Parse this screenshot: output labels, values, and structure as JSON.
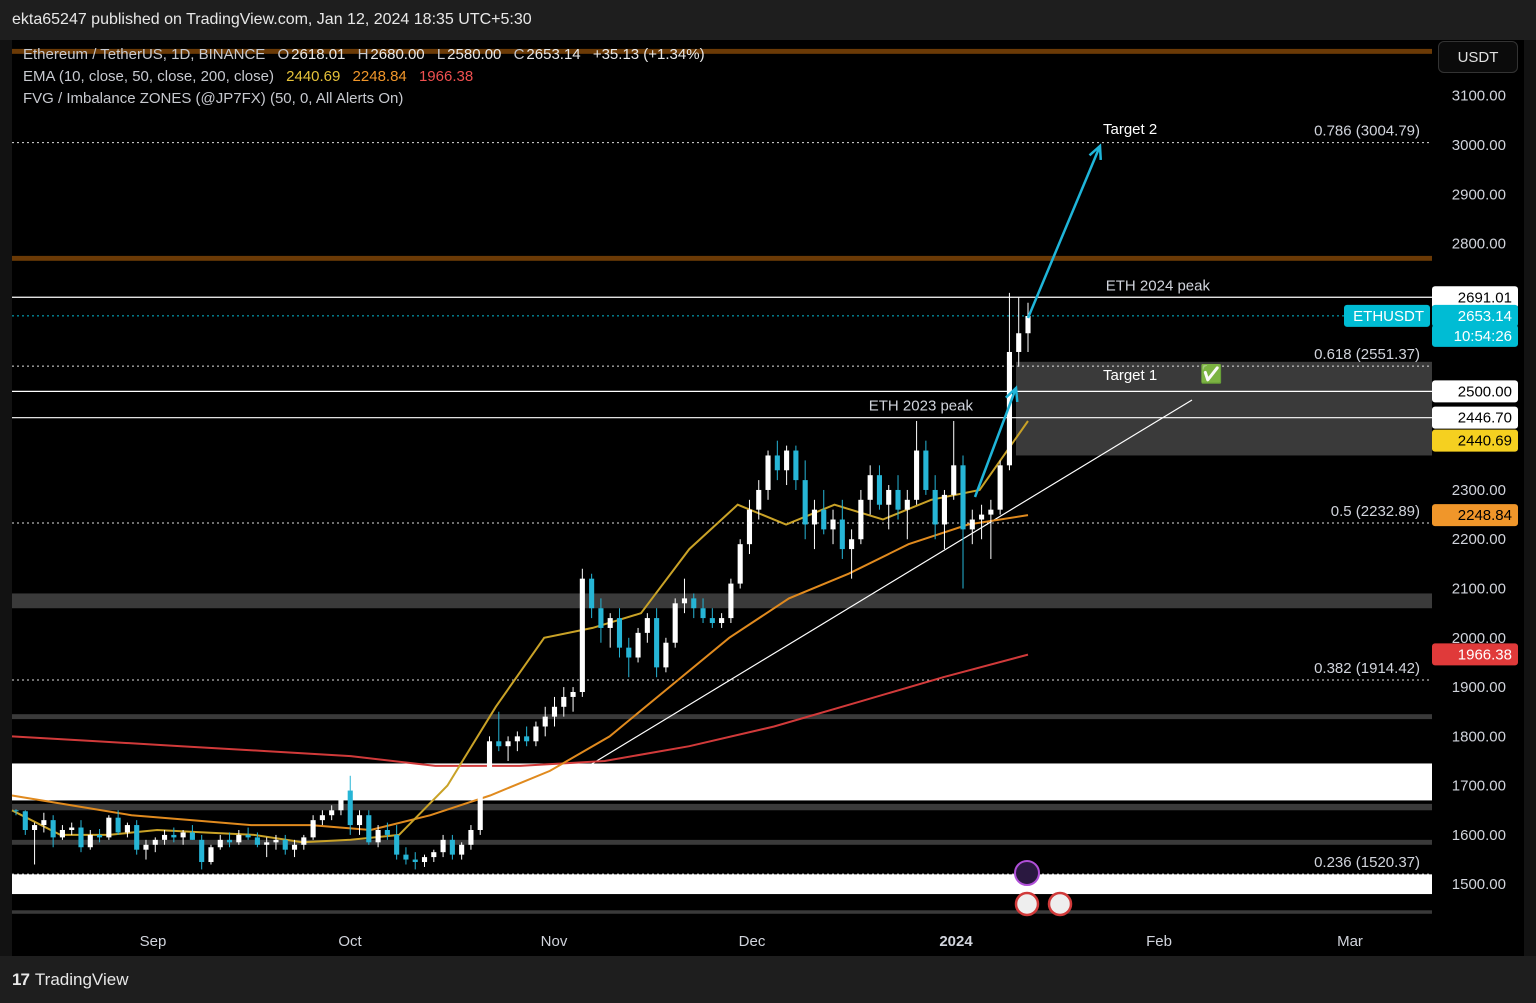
{
  "header": {
    "published_by": "ekta65247 published on TradingView.com, Jan 12, 2024 18:35 UTC+5:30"
  },
  "legend": {
    "symbol": "Ethereum / TetherUS, 1D, BINANCE",
    "o_label": "O",
    "o": "2618.01",
    "h_label": "H",
    "h": "2680.00",
    "l_label": "L",
    "l": "2580.00",
    "c_label": "C",
    "c": "2653.14",
    "change": "+35.13 (+1.34%)",
    "ema_label": "EMA (10, close, 50, close, 200, close)",
    "ema10": "2440.69",
    "ema50": "2248.84",
    "ema200": "1966.38",
    "fvg_label": "FVG / Imbalance ZONES (@JP7FX) (50, 0, All Alerts On)"
  },
  "currency_button": "USDT",
  "colors": {
    "up": "#ffffff",
    "down": "#26b5d6",
    "ema10": "#c9a227",
    "ema50": "#e08a1e",
    "ema200": "#d13a3a",
    "arrow": "#1fb5d9",
    "hband": "#6b3a06",
    "current": "#00bcd4"
  },
  "chart_data": {
    "type": "candlestick",
    "title": "Ethereum / TetherUS, 1D, BINANCE",
    "ylim": [
      1440,
      3180
    ],
    "y_ticks": [
      "3100.00",
      "3000.00",
      "2900.00",
      "2800.00",
      "2691.01",
      "2500.00",
      "2446.70",
      "2300.00",
      "2200.00",
      "2100.00",
      "2000.00",
      "1900.00",
      "1800.00",
      "1700.00",
      "1600.00",
      "1500.00"
    ],
    "x_labels": [
      "Sep",
      "Oct",
      "Nov",
      "Dec",
      "2024",
      "Feb",
      "Mar"
    ],
    "candles_ohlc_approx": [
      [
        1650,
        1652,
        1640,
        1648
      ],
      [
        1648,
        1650,
        1600,
        1610
      ],
      [
        1610,
        1625,
        1540,
        1620
      ],
      [
        1620,
        1645,
        1605,
        1630
      ],
      [
        1630,
        1640,
        1575,
        1595
      ],
      [
        1595,
        1620,
        1590,
        1610
      ],
      [
        1610,
        1625,
        1600,
        1615
      ],
      [
        1615,
        1630,
        1565,
        1575
      ],
      [
        1575,
        1610,
        1570,
        1600
      ],
      [
        1600,
        1612,
        1585,
        1595
      ],
      [
        1595,
        1640,
        1590,
        1635
      ],
      [
        1635,
        1650,
        1600,
        1605
      ],
      [
        1605,
        1625,
        1595,
        1620
      ],
      [
        1620,
        1630,
        1560,
        1570
      ],
      [
        1570,
        1590,
        1550,
        1580
      ],
      [
        1580,
        1595,
        1565,
        1590
      ],
      [
        1590,
        1610,
        1580,
        1600
      ],
      [
        1600,
        1615,
        1585,
        1595
      ],
      [
        1595,
        1610,
        1580,
        1605
      ],
      [
        1605,
        1620,
        1590,
        1590
      ],
      [
        1590,
        1600,
        1530,
        1545
      ],
      [
        1545,
        1580,
        1540,
        1575
      ],
      [
        1575,
        1600,
        1570,
        1590
      ],
      [
        1590,
        1605,
        1575,
        1585
      ],
      [
        1585,
        1610,
        1580,
        1600
      ],
      [
        1600,
        1615,
        1590,
        1595
      ],
      [
        1595,
        1605,
        1575,
        1580
      ],
      [
        1580,
        1595,
        1555,
        1585
      ],
      [
        1585,
        1600,
        1570,
        1590
      ],
      [
        1590,
        1600,
        1560,
        1570
      ],
      [
        1570,
        1590,
        1555,
        1580
      ],
      [
        1580,
        1600,
        1570,
        1595
      ],
      [
        1595,
        1640,
        1590,
        1630
      ],
      [
        1630,
        1650,
        1620,
        1640
      ],
      [
        1640,
        1660,
        1630,
        1650
      ],
      [
        1650,
        1700,
        1640,
        1690
      ],
      [
        1690,
        1720,
        1600,
        1620
      ],
      [
        1620,
        1650,
        1600,
        1640
      ],
      [
        1640,
        1650,
        1580,
        1585
      ],
      [
        1585,
        1620,
        1575,
        1610
      ],
      [
        1610,
        1625,
        1590,
        1600
      ],
      [
        1600,
        1620,
        1550,
        1560
      ],
      [
        1560,
        1575,
        1540,
        1550
      ],
      [
        1550,
        1565,
        1530,
        1545
      ],
      [
        1545,
        1560,
        1535,
        1555
      ],
      [
        1555,
        1570,
        1545,
        1565
      ],
      [
        1565,
        1600,
        1555,
        1590
      ],
      [
        1590,
        1600,
        1550,
        1560
      ],
      [
        1560,
        1585,
        1550,
        1580
      ],
      [
        1580,
        1620,
        1570,
        1610
      ],
      [
        1610,
        1720,
        1600,
        1700
      ],
      [
        1700,
        1800,
        1690,
        1790
      ],
      [
        1790,
        1850,
        1770,
        1780
      ],
      [
        1780,
        1800,
        1750,
        1790
      ],
      [
        1790,
        1810,
        1770,
        1800
      ],
      [
        1800,
        1820,
        1780,
        1790
      ],
      [
        1790,
        1830,
        1780,
        1820
      ],
      [
        1820,
        1860,
        1800,
        1840
      ],
      [
        1840,
        1880,
        1820,
        1860
      ],
      [
        1860,
        1900,
        1840,
        1880
      ],
      [
        1880,
        1900,
        1850,
        1890
      ],
      [
        1890,
        2140,
        1880,
        2120
      ],
      [
        2120,
        2130,
        2040,
        2060
      ],
      [
        2060,
        2080,
        1990,
        2020
      ],
      [
        2020,
        2050,
        1980,
        2040
      ],
      [
        2040,
        2060,
        1960,
        1980
      ],
      [
        1980,
        2000,
        1920,
        1960
      ],
      [
        1960,
        2020,
        1950,
        2010
      ],
      [
        2010,
        2050,
        1990,
        2040
      ],
      [
        2040,
        2060,
        1920,
        1940
      ],
      [
        1940,
        2000,
        1930,
        1990
      ],
      [
        1990,
        2080,
        1980,
        2070
      ],
      [
        2070,
        2120,
        2050,
        2080
      ],
      [
        2080,
        2090,
        2040,
        2060
      ],
      [
        2060,
        2080,
        2030,
        2040
      ],
      [
        2040,
        2060,
        2020,
        2030
      ],
      [
        2030,
        2050,
        2020,
        2040
      ],
      [
        2040,
        2120,
        2030,
        2110
      ],
      [
        2110,
        2200,
        2100,
        2190
      ],
      [
        2190,
        2280,
        2170,
        2260
      ],
      [
        2260,
        2320,
        2240,
        2300
      ],
      [
        2300,
        2380,
        2280,
        2370
      ],
      [
        2370,
        2400,
        2320,
        2340
      ],
      [
        2340,
        2390,
        2310,
        2380
      ],
      [
        2380,
        2390,
        2300,
        2320
      ],
      [
        2320,
        2360,
        2200,
        2230
      ],
      [
        2230,
        2280,
        2180,
        2260
      ],
      [
        2260,
        2300,
        2210,
        2220
      ],
      [
        2220,
        2260,
        2190,
        2240
      ],
      [
        2240,
        2280,
        2160,
        2180
      ],
      [
        2180,
        2220,
        2120,
        2200
      ],
      [
        2200,
        2300,
        2190,
        2280
      ],
      [
        2280,
        2350,
        2250,
        2330
      ],
      [
        2330,
        2350,
        2260,
        2270
      ],
      [
        2270,
        2310,
        2220,
        2300
      ],
      [
        2300,
        2330,
        2240,
        2260
      ],
      [
        2260,
        2300,
        2200,
        2280
      ],
      [
        2280,
        2440,
        2270,
        2380
      ],
      [
        2380,
        2400,
        2290,
        2300
      ],
      [
        2300,
        2330,
        2200,
        2230
      ],
      [
        2230,
        2300,
        2180,
        2290
      ],
      [
        2290,
        2440,
        2280,
        2350
      ],
      [
        2350,
        2370,
        2100,
        2220
      ],
      [
        2220,
        2260,
        2190,
        2240
      ],
      [
        2240,
        2270,
        2200,
        2250
      ],
      [
        2250,
        2280,
        2160,
        2260
      ],
      [
        2260,
        2360,
        2250,
        2350
      ],
      [
        2350,
        2700,
        2340,
        2580
      ],
      [
        2580,
        2691,
        2550,
        2618
      ],
      [
        2618,
        2680,
        2580,
        2653
      ]
    ],
    "ema10": [
      1650,
      1600,
      1600,
      1610,
      1605,
      1600,
      1585,
      1590,
      1600,
      1700,
      1860,
      2000,
      2020,
      2050,
      2180,
      2270,
      2230,
      2270,
      2240,
      2280,
      2300,
      2440
    ],
    "ema50": [
      1680,
      1660,
      1640,
      1630,
      1620,
      1620,
      1610,
      1640,
      1680,
      1730,
      1800,
      1900,
      2000,
      2080,
      2130,
      2190,
      2230,
      2249
    ],
    "ema200": [
      1800,
      1790,
      1780,
      1770,
      1760,
      1740,
      1740,
      1750,
      1780,
      1820,
      1870,
      1920,
      1966
    ],
    "horizontal_levels": [
      {
        "label": "ETH 2024 peak",
        "value": 2691.01,
        "style": "solid"
      },
      {
        "label": "",
        "value": 2500.0,
        "style": "solid"
      },
      {
        "label": "ETH 2023 peak",
        "value": 2446.7,
        "style": "solid"
      }
    ],
    "fib_levels": [
      {
        "label": "0.786 (3004.79)",
        "value": 3004.79
      },
      {
        "label": "0.618 (2551.37)",
        "value": 2551.37
      },
      {
        "label": "0.5 (2232.89)",
        "value": 2232.89
      },
      {
        "label": "0.382 (1914.42)",
        "value": 1914.42
      },
      {
        "label": "0.236 (1520.37)",
        "value": 1520.37
      }
    ],
    "zones": [
      {
        "y1": 3195,
        "y2": 3185,
        "color": "orange"
      },
      {
        "y1": 2775,
        "y2": 2765,
        "color": "orange"
      },
      {
        "y1": 2560,
        "y2": 2370,
        "color": "gray",
        "x_from": "2024-01-11"
      },
      {
        "y1": 2090,
        "y2": 2060,
        "color": "gray"
      },
      {
        "y1": 1845,
        "y2": 1835,
        "color": "gray"
      },
      {
        "y1": 1745,
        "y2": 1670,
        "color": "white"
      },
      {
        "y1": 1663,
        "y2": 1650,
        "color": "gray"
      },
      {
        "y1": 1590,
        "y2": 1580,
        "color": "gray"
      },
      {
        "y1": 1520,
        "y2": 1480,
        "color": "white"
      },
      {
        "y1": 1447,
        "y2": 1440,
        "color": "gray"
      }
    ],
    "annotations": {
      "target1": "Target 1",
      "target2": "Target 2",
      "check": "✅"
    },
    "price_tags": {
      "peak": "2691.01",
      "symbol": "ETHUSDT",
      "price": "2653.14",
      "countdown": "10:54:26",
      "level2500": "2500.00",
      "level2446": "2446.70",
      "ema10": "2440.69",
      "ema50": "2248.84",
      "ema200": "1966.38"
    }
  },
  "footer": {
    "brand": "TradingView",
    "logo_mark": "17"
  }
}
